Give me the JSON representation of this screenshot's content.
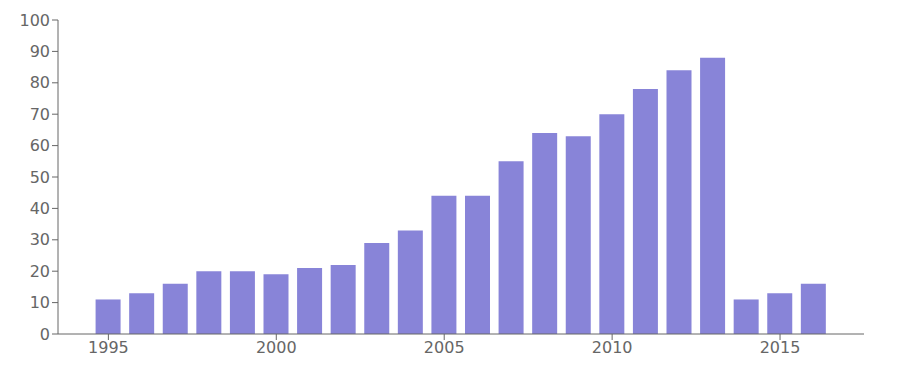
{
  "chart_data": {
    "type": "bar",
    "x": [
      1995,
      1996,
      1997,
      1998,
      1999,
      2000,
      2001,
      2002,
      2003,
      2004,
      2005,
      2006,
      2007,
      2008,
      2009,
      2010,
      2011,
      2012,
      2013,
      2014,
      2015,
      2016
    ],
    "values": [
      11,
      13,
      16,
      20,
      20,
      19,
      21,
      22,
      29,
      33,
      44,
      44,
      55,
      64,
      63,
      70,
      78,
      84,
      88,
      11,
      13,
      16
    ],
    "color": "#8884d8",
    "xlim": [
      1993.5,
      2017.5
    ],
    "xticks": [
      1995,
      2000,
      2005,
      2010,
      2015
    ],
    "ylim": [
      0,
      100
    ],
    "yticks": [
      0,
      10,
      20,
      30,
      40,
      50,
      60,
      70,
      80,
      90,
      100
    ]
  }
}
